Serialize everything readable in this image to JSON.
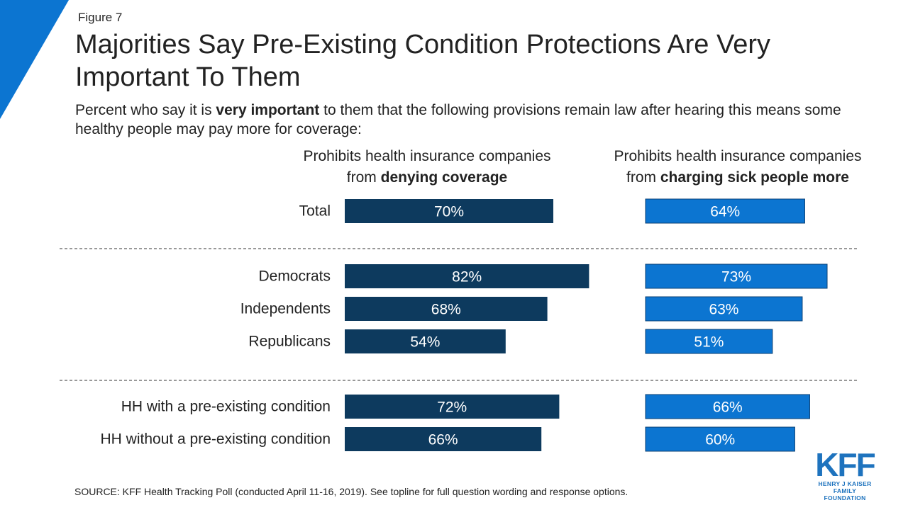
{
  "figure_label": "Figure 7",
  "title": "Majorities Say Pre-Existing Condition Protections Are Very Important To Them",
  "subtitle": {
    "pre": "Percent who say it is ",
    "bold": "very important",
    "post": " to them that the following provisions remain law after hearing this means some healthy people may pay more for coverage:"
  },
  "columns": [
    {
      "line1": "Prohibits health insurance companies",
      "line2_pre": "from ",
      "line2_bold": "denying coverage"
    },
    {
      "line1": "Prohibits health insurance companies",
      "line2_pre": "from ",
      "line2_bold": "charging sick people more"
    }
  ],
  "source": "SOURCE: KFF Health Tracking Poll (conducted April 11-16, 2019). See topline for full question wording and response options.",
  "logo": {
    "mark": "KFF",
    "line1": "HENRY J KAISER",
    "line2": "FAMILY FOUNDATION"
  },
  "colors": {
    "dark": "#0d3a5e",
    "bright": "#0c75d1",
    "corner": "#0c75d1"
  },
  "chart_data": {
    "type": "bar",
    "orientation": "horizontal",
    "categories": [
      "Total",
      "Democrats",
      "Independents",
      "Republicans",
      "HH with a pre-existing condition",
      "HH without a pre-existing condition"
    ],
    "groups": [
      [
        0
      ],
      [
        1,
        2,
        3
      ],
      [
        4,
        5
      ]
    ],
    "series": [
      {
        "values": [
          70,
          82,
          68,
          54,
          72,
          66
        ],
        "color": "#0d3a5e"
      },
      {
        "values": [
          64,
          73,
          63,
          51,
          66,
          60
        ],
        "color": "#0c75d1"
      }
    ],
    "value_suffix": "%",
    "xlim": [
      0,
      100
    ]
  }
}
